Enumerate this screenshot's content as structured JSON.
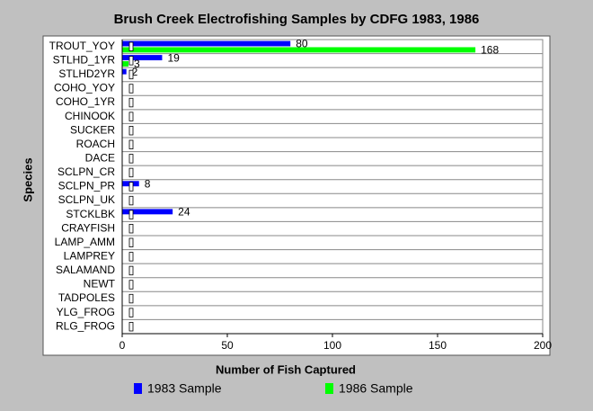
{
  "chart_data": {
    "type": "hbar",
    "title": "Brush Creek Electrofishing Samples by CDFG 1983, 1986",
    "x_label": "Number of Fish Captured",
    "y_label": "Species",
    "categories": [
      "TROUT_YOY",
      "STLHD_1YR",
      "STLHD2YR",
      "COHO_YOY",
      "COHO_1YR",
      "CHINOOK",
      "SUCKER",
      "ROACH",
      "DACE",
      "SCLPN_CR",
      "SCLPN_PR",
      "SCLPN_UK",
      "STCKLBK",
      "CRAYFISH",
      "LAMP_AMM",
      "LAMPREY",
      "SALAMAND",
      "NEWT",
      "TADPOLES",
      "YLG_FROG",
      "RLG_FROG"
    ],
    "series": [
      {
        "name": "1983 Sample",
        "color": "#0000ff",
        "values": [
          80,
          19,
          2,
          0,
          0,
          0,
          0,
          0,
          0,
          0,
          8,
          0,
          24,
          0,
          0,
          0,
          0,
          0,
          0,
          0,
          0
        ]
      },
      {
        "name": "1986 Sample",
        "color": "#00ff00",
        "values": [
          168,
          3,
          0,
          0,
          0,
          0,
          0,
          0,
          0,
          0,
          0,
          0,
          0,
          0,
          0,
          0,
          0,
          0,
          0,
          0,
          0
        ]
      }
    ],
    "xlim": [
      0,
      200
    ],
    "xticks": [
      0,
      50,
      100,
      150,
      200
    ],
    "grid": true,
    "legend": "bottom"
  }
}
